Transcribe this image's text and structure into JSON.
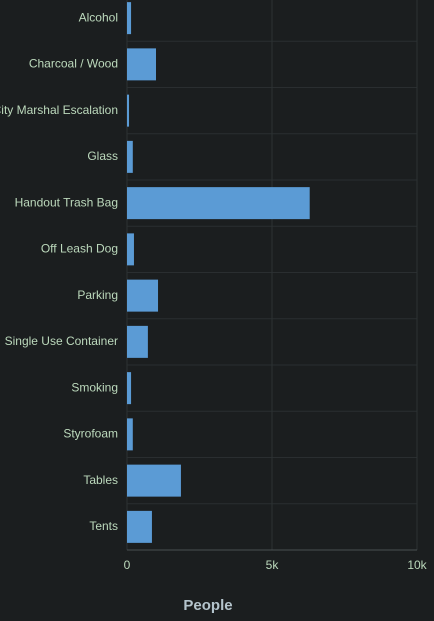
{
  "chart_data": {
    "type": "barh",
    "x_label": "People",
    "categories": [
      "Alcohol",
      "Charcoal / Wood",
      "City Marshal Escalation",
      "Glass",
      "Handout Trash Bag",
      "Off Leash Dog",
      "Parking",
      "Single Use Container",
      "Smoking",
      "Styrofoam",
      "Tables",
      "Tents"
    ],
    "values": [
      140,
      1000,
      70,
      200,
      6300,
      240,
      1070,
      720,
      140,
      200,
      1860,
      860
    ],
    "color": "#5b9bd5",
    "xlim": [
      0,
      10000
    ],
    "xticks": [
      0,
      {
        "value": 5000,
        "label": "5k"
      },
      {
        "value": 10000,
        "label": "10k"
      }
    ],
    "grid": true
  }
}
